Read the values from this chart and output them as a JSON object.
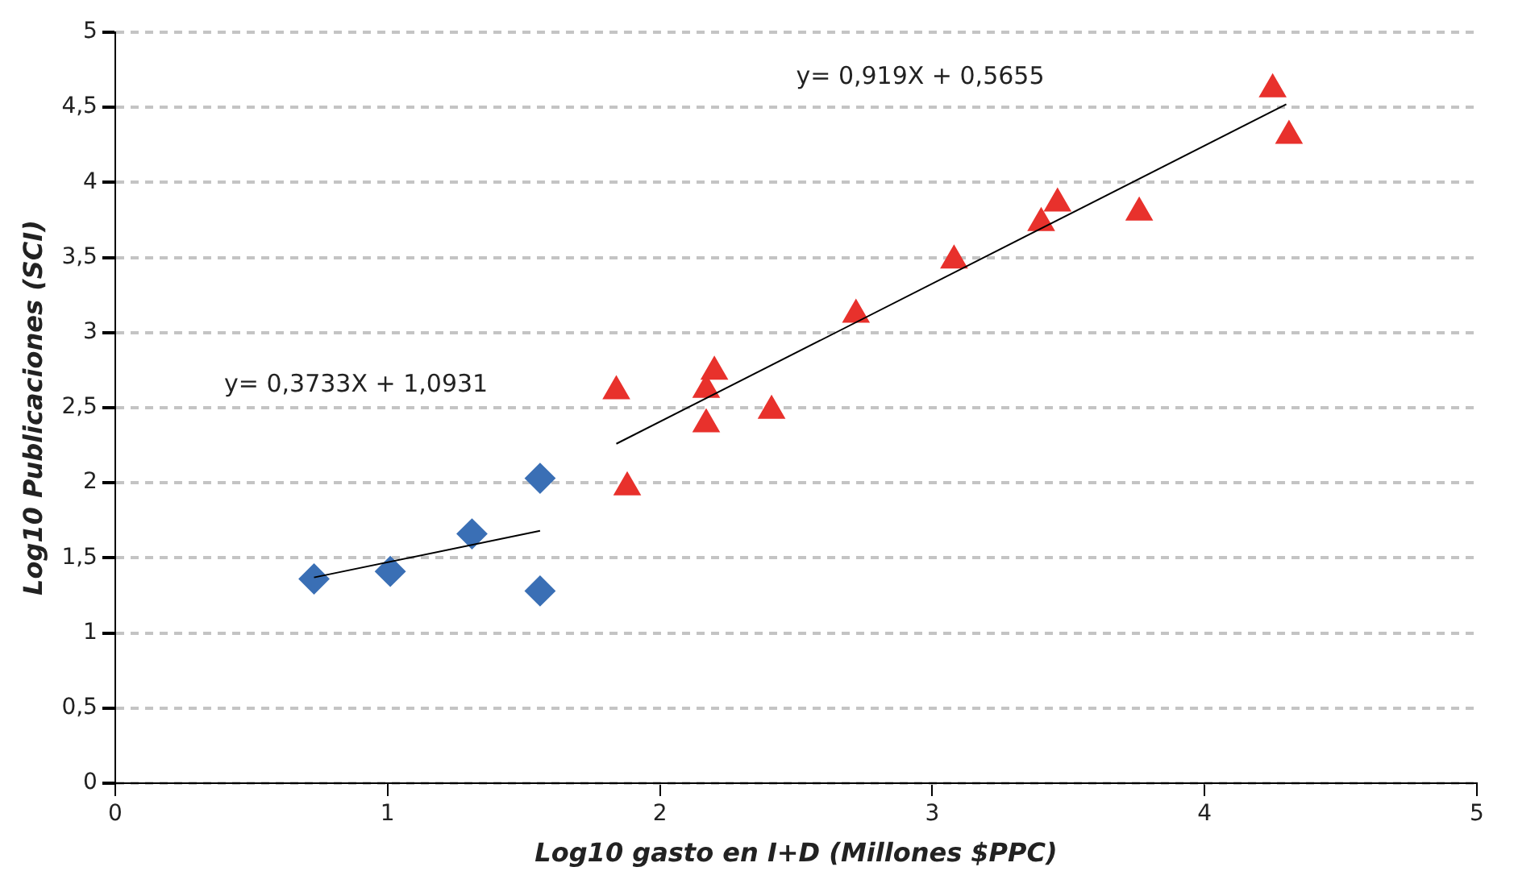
{
  "chart_data": {
    "type": "scatter",
    "xlabel": "Log10 gasto en I+D (Millones $PPC)",
    "ylabel": "Log10 Publicaciones (SCI)",
    "xlim": [
      0,
      5
    ],
    "xticks": [
      0,
      1,
      2,
      3,
      4,
      5
    ],
    "ylim": [
      0,
      5
    ],
    "yticks": [
      0,
      {
        "value": 0.5,
        "label": "0,5"
      },
      1,
      {
        "value": 1.5,
        "label": "1,5"
      },
      2,
      {
        "value": 2.5,
        "label": "2,5"
      },
      3,
      {
        "value": 3.5,
        "label": "3,5"
      },
      4,
      {
        "value": 4.5,
        "label": "4,5"
      },
      5
    ],
    "grid": "y",
    "legend": false,
    "series": [
      {
        "type": "scatter",
        "marker": "diamond",
        "color": "#3a6fb5",
        "x": [
          0.73,
          1.01,
          1.31,
          1.56,
          1.56
        ],
        "values": [
          1.36,
          1.41,
          1.66,
          2.03,
          1.28
        ]
      },
      {
        "type": "scatter",
        "marker": "triangle",
        "color": "#e8312c",
        "x": [
          1.84,
          1.88,
          2.17,
          2.17,
          2.2,
          2.41,
          2.72,
          3.08,
          3.4,
          3.46,
          3.76,
          4.25,
          4.31
        ],
        "values": [
          2.61,
          1.97,
          2.62,
          2.39,
          2.74,
          2.48,
          3.12,
          3.48,
          3.73,
          3.86,
          3.8,
          4.62,
          4.31
        ]
      },
      {
        "type": "line",
        "marker": "none",
        "line_style": "solid",
        "color": "#000000",
        "x": [
          0.73,
          1.56
        ],
        "values": [
          1.37,
          1.68
        ]
      },
      {
        "type": "line",
        "marker": "none",
        "line_style": "solid",
        "color": "#000000",
        "x": [
          1.84,
          4.3
        ],
        "values": [
          2.26,
          4.52
        ]
      }
    ],
    "annotations": [
      "y= 0,919X + 0,5655",
      "y= 0,3733X + 1,0931"
    ]
  }
}
